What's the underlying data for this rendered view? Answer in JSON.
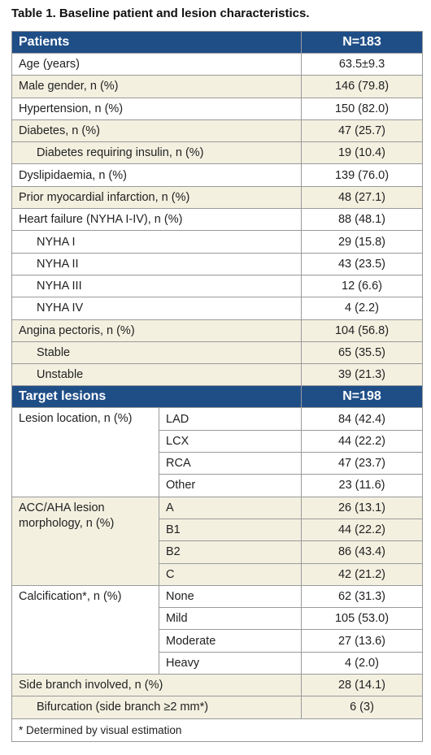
{
  "title": "Table 1. Baseline patient and lesion characteristics.",
  "patients": {
    "header": [
      "Patients",
      "N=183"
    ],
    "rows": [
      {
        "label": "Age (years)",
        "value": "63.5±9.3"
      },
      {
        "label": "Male gender, n (%)",
        "value": "146 (79.8)"
      },
      {
        "label": "Hypertension, n (%)",
        "value": "150 (82.0)"
      },
      {
        "label": "Diabetes, n (%)",
        "value": "47 (25.7)",
        "subrows": [
          {
            "label": "Diabetes requiring insulin, n (%)",
            "value": "19 (10.4)"
          }
        ]
      },
      {
        "label": "Dyslipidaemia, n (%)",
        "value": "139 (76.0)"
      },
      {
        "label": "Prior myocardial infarction, n (%)",
        "value": "48 (27.1)"
      },
      {
        "label": "Heart failure (NYHA I-IV), n (%)",
        "value": "88 (48.1)",
        "subrows": [
          {
            "label": "NYHA I",
            "value": "29 (15.8)"
          },
          {
            "label": "NYHA II",
            "value": "43 (23.5)"
          },
          {
            "label": "NYHA III",
            "value": "12 (6.6)"
          },
          {
            "label": "NYHA IV",
            "value": "4 (2.2)"
          }
        ]
      },
      {
        "label": "Angina pectoris, n (%)",
        "value": "104 (56.8)",
        "subrows": [
          {
            "label": "Stable",
            "value": "65 (35.5)"
          },
          {
            "label": "Unstable",
            "value": "39 (21.3)"
          }
        ]
      }
    ]
  },
  "lesions": {
    "header": [
      "Target lesions",
      "N=198"
    ],
    "groups": [
      {
        "label": "Lesion location, n (%)",
        "items": [
          {
            "label": "LAD",
            "value": "84 (42.4)"
          },
          {
            "label": "LCX",
            "value": "44 (22.2)"
          },
          {
            "label": "RCA",
            "value": "47 (23.7)"
          },
          {
            "label": "Other",
            "value": "23 (11.6)"
          }
        ]
      },
      {
        "label": "ACC/AHA lesion morphology, n (%)",
        "items": [
          {
            "label": "A",
            "value": "26 (13.1)"
          },
          {
            "label": "B1",
            "value": "44 (22.2)"
          },
          {
            "label": "B2",
            "value": "86 (43.4)"
          },
          {
            "label": "C",
            "value": "42 (21.2)"
          }
        ]
      },
      {
        "label": "Calcification*, n (%)",
        "items": [
          {
            "label": "None",
            "value": "62 (31.3)"
          },
          {
            "label": "Mild",
            "value": "105 (53.0)"
          },
          {
            "label": "Moderate",
            "value": "27 (13.6)"
          },
          {
            "label": "Heavy",
            "value": "4 (2.0)"
          }
        ]
      },
      {
        "label": "Side branch involved, n (%)",
        "value": "28 (14.1)",
        "subrows": [
          {
            "label": "Bifurcation (side branch ≥2 mm*)",
            "value": "6 (3)"
          }
        ]
      }
    ]
  },
  "footnote": "* Determined by visual estimation"
}
